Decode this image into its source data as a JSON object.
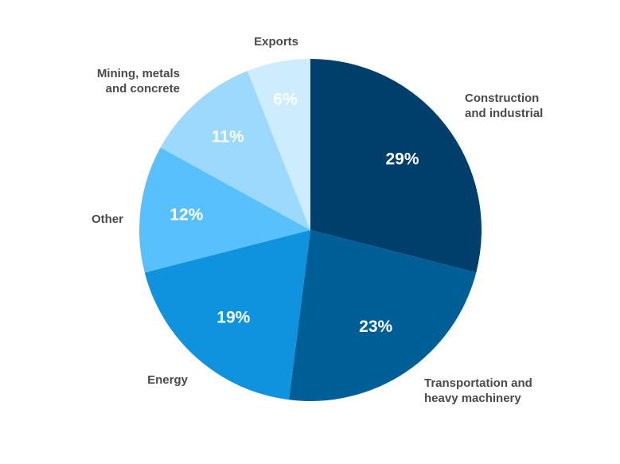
{
  "chart_data": {
    "type": "pie",
    "title": "",
    "start_angle_deg": 0,
    "direction": "clockwise",
    "slices": [
      {
        "label_lines": [
          "Construction",
          "and industrial"
        ],
        "value": 29,
        "label": "29%",
        "color": "#003f6b"
      },
      {
        "label_lines": [
          "Transportation and",
          "heavy machinery"
        ],
        "value": 23,
        "label": "23%",
        "color": "#005e97"
      },
      {
        "label_lines": [
          "Energy"
        ],
        "value": 19,
        "label": "19%",
        "color": "#1093df"
      },
      {
        "label_lines": [
          "Other"
        ],
        "value": 12,
        "label": "12%",
        "color": "#57c0fd"
      },
      {
        "label_lines": [
          "Mining, metals",
          "and concrete"
        ],
        "value": 11,
        "label": "11%",
        "color": "#9cd9fd"
      },
      {
        "label_lines": [
          "Exports"
        ],
        "value": 6,
        "label": "6%",
        "color": "#cdedfe"
      }
    ]
  }
}
